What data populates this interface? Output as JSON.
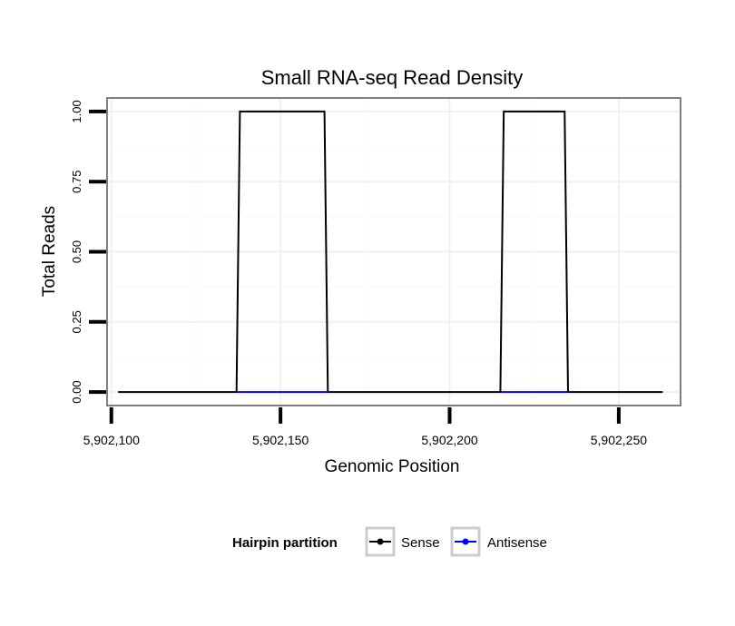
{
  "chart_data": {
    "type": "line",
    "title": "Small RNA-seq Read Density",
    "xlabel": "Genomic Position",
    "ylabel": "Total Reads",
    "xlim": [
      5902099,
      5902268
    ],
    "ylim": [
      -0.045,
      1.045
    ],
    "x_ticks": [
      5902100,
      5902150,
      5902200,
      5902250
    ],
    "x_tick_labels": [
      "5,902,100",
      "5,902,150",
      "5,902,200",
      "5,902,250"
    ],
    "y_ticks": [
      0,
      0.25,
      0.5,
      0.75,
      1
    ],
    "y_tick_labels": [
      "0.00",
      "0.25",
      "0.50",
      "0.75",
      "1.00"
    ],
    "grid": true,
    "legend": {
      "title": "Hairpin partition",
      "position": "bottom"
    },
    "series": [
      {
        "name": "Sense",
        "color": "#000000",
        "x": [
          5902102,
          5902137,
          5902138,
          5902163,
          5902164,
          5902215,
          5902216,
          5902234,
          5902235,
          5902263
        ],
        "y": [
          0,
          0,
          1,
          1,
          0,
          0,
          1,
          1,
          0,
          0
        ]
      },
      {
        "name": "Antisense",
        "color": "#0000ff",
        "x": [
          5902137,
          5902164,
          5902215,
          5902235
        ],
        "y": [
          0,
          0,
          0,
          0
        ],
        "segments": [
          [
            0,
            1
          ],
          [
            2,
            3
          ]
        ]
      }
    ]
  }
}
